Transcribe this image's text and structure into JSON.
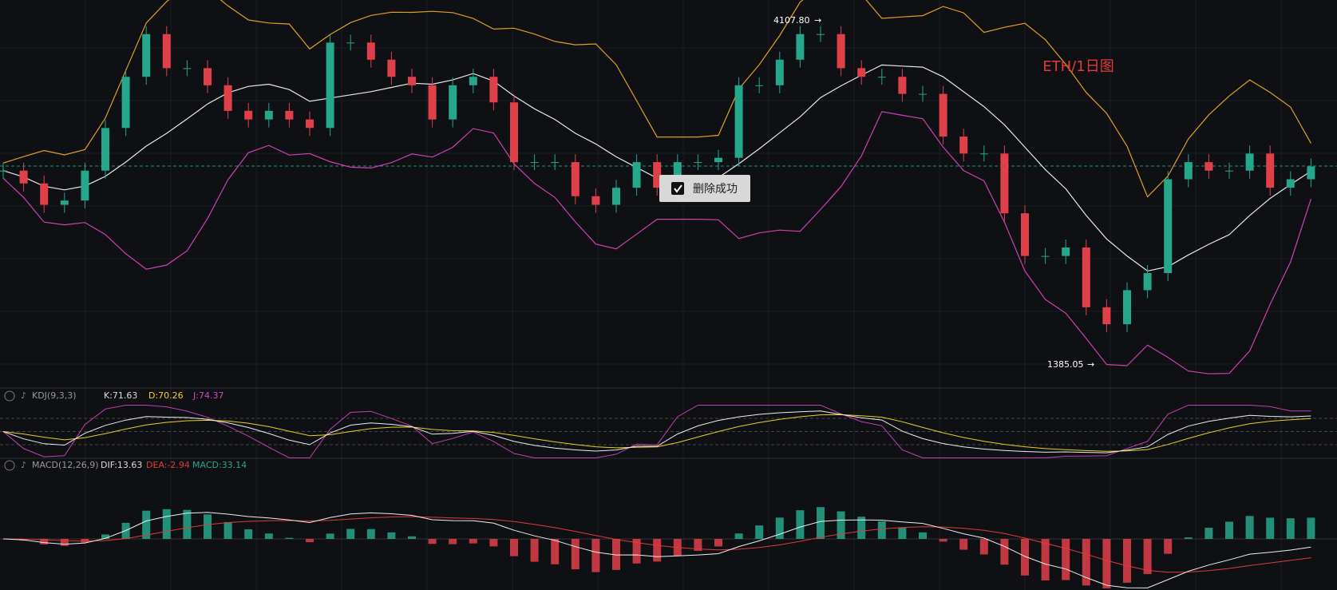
{
  "chart": {
    "title": "ETH/1日图",
    "high_label": "4107.80",
    "low_label": "1385.05",
    "closes": [
      2922,
      2821,
      2652,
      2686,
      2922,
      3259,
      3663,
      4000,
      3731,
      3731,
      3596,
      3394,
      3326,
      3394,
      3326,
      3259,
      3933,
      3933,
      3798,
      3663,
      3596,
      3326,
      3596,
      3663,
      3461,
      2989,
      2989,
      2989,
      2720,
      2652,
      2787,
      2989,
      2787,
      2989,
      2989,
      3023,
      3596,
      3596,
      3798,
      4000,
      4000,
      3731,
      3663,
      3663,
      3528,
      3528,
      3191,
      3057,
      3057,
      2585,
      2248,
      2248,
      2315,
      1843,
      1709,
      1978,
      2113,
      2854,
      2989,
      2922,
      2922,
      3057,
      2787,
      2854,
      2955
    ],
    "ylim": [
      1300,
      4200
    ]
  },
  "kdj": {
    "label": "KDJ(9,3,3)",
    "k": "K:71.63",
    "d": "D:70.26",
    "j": "J:74.37"
  },
  "macd": {
    "label": "MACD(12,26,9)",
    "dif": "DIF:13.63",
    "dea": "DEA:-2.94",
    "macd": "MACD:33.14"
  },
  "toast": {
    "text": "删除成功"
  }
}
